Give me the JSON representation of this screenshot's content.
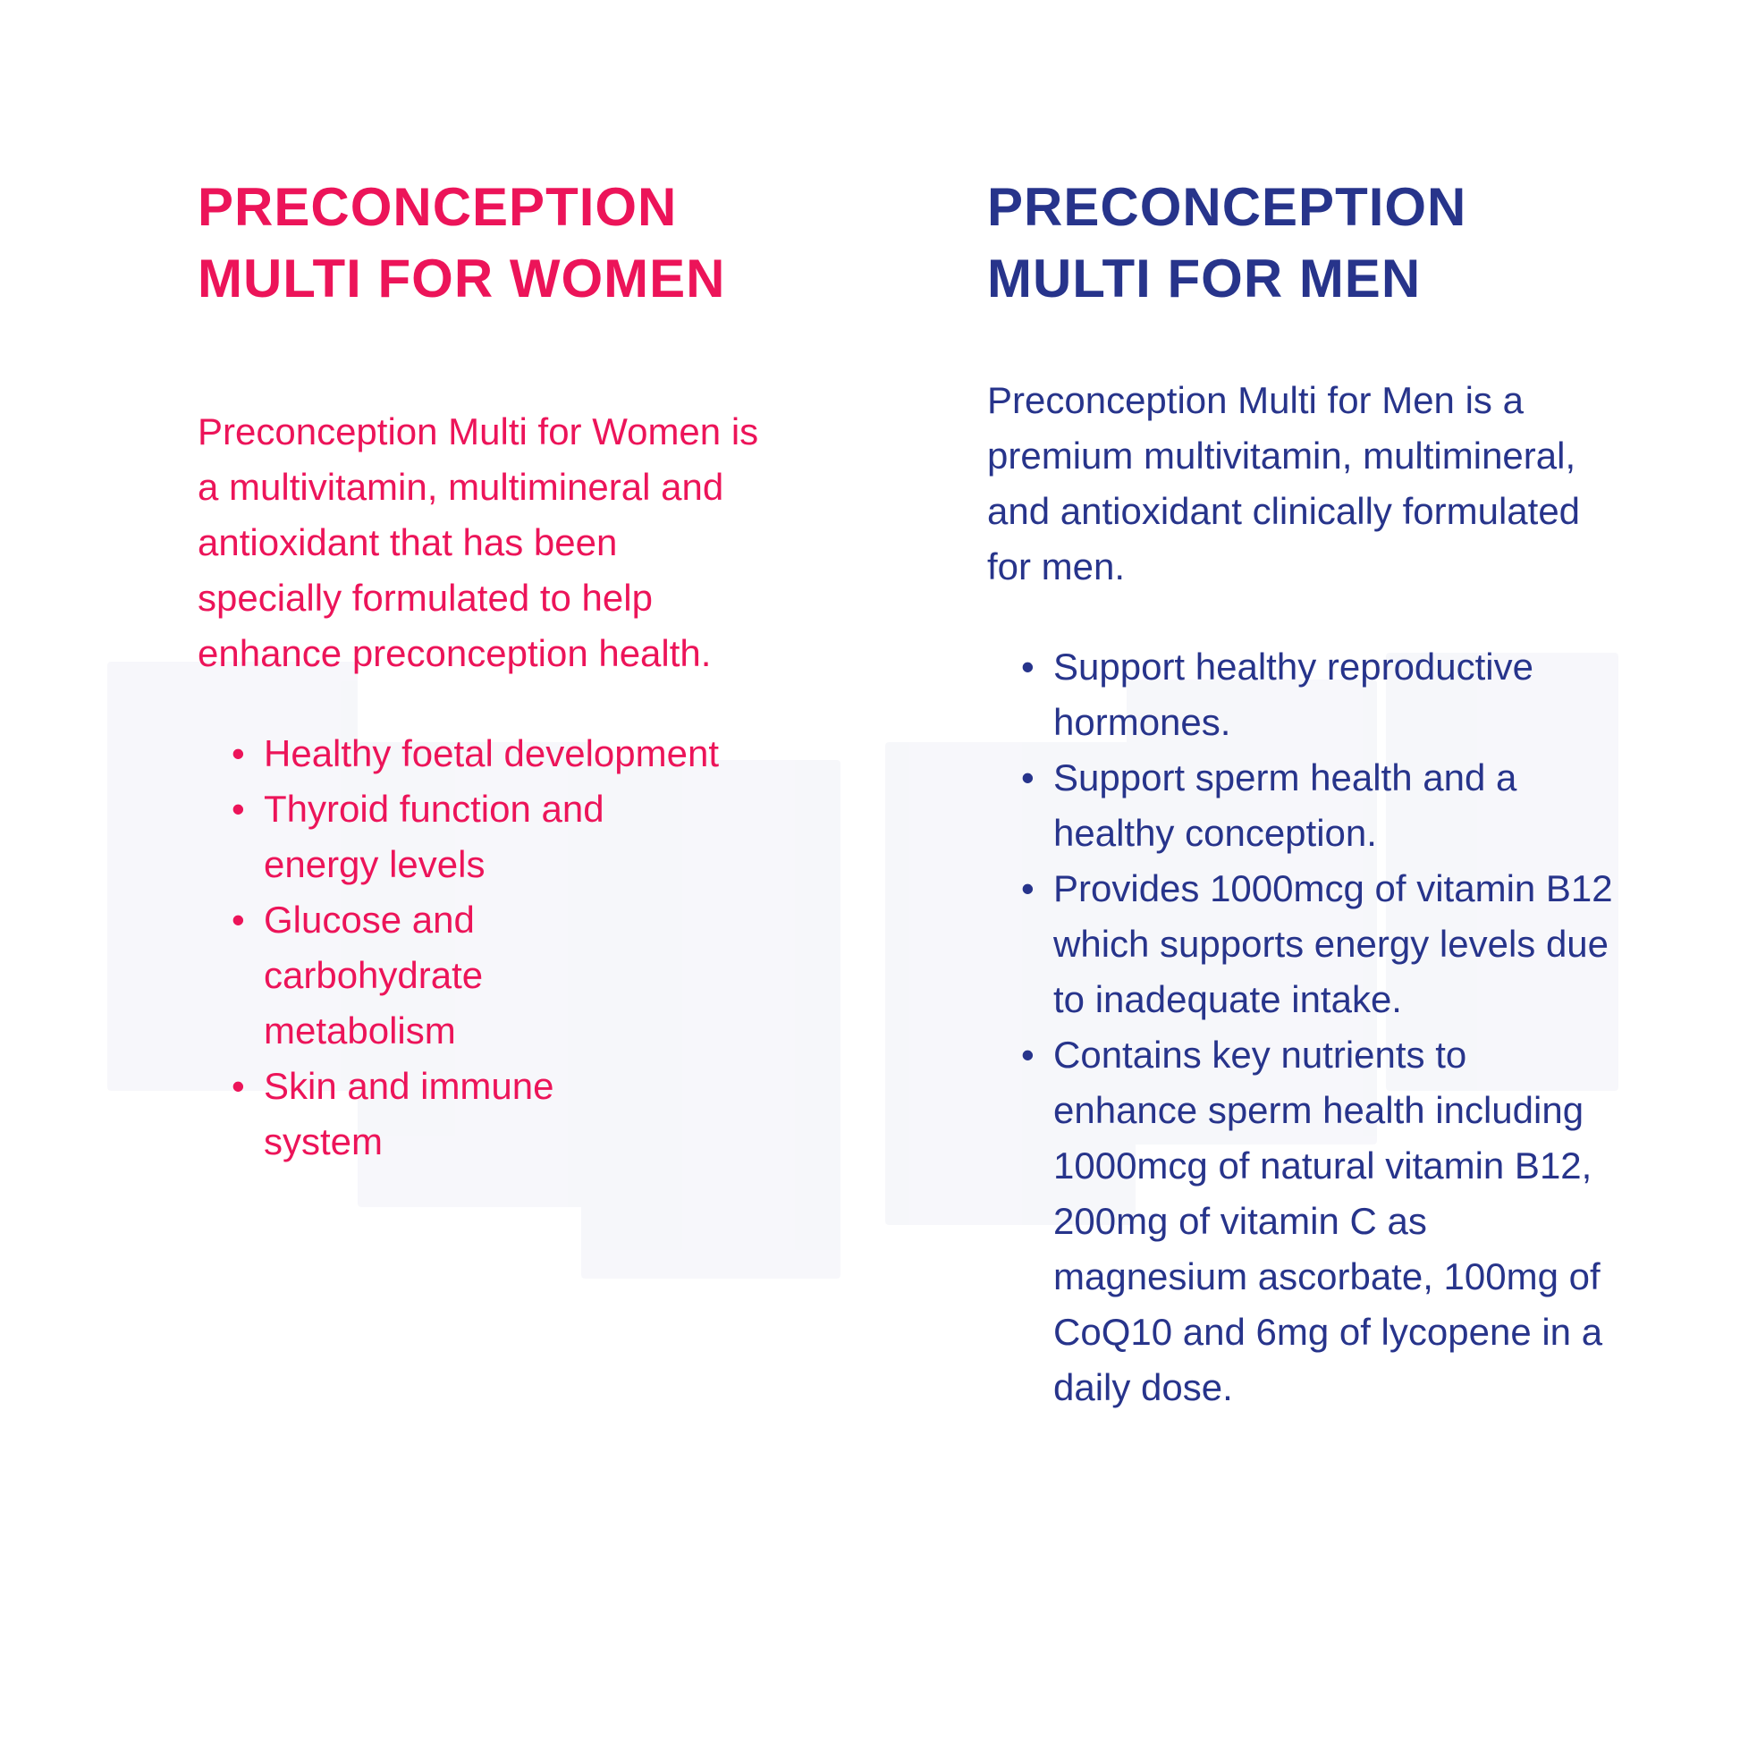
{
  "colors": {
    "women": "#ec1459",
    "men": "#27348b"
  },
  "women": {
    "title_line1": "PRECONCEPTION",
    "title_line2": "MULTI FOR WOMEN",
    "description": "Preconception Multi for Women is a multivitamin, multimineral and antioxidant that has been specially formulated to help enhance preconception health.",
    "bullets": [
      "Healthy foetal development",
      "Thyroid function and energy levels",
      "Glucose and carbohydrate metabolism",
      "Skin and immune system"
    ]
  },
  "men": {
    "title_line1": "PRECONCEPTION",
    "title_line2": "MULTI FOR MEN",
    "description": "Preconception Multi for Men is a premium multivitamin, multimineral, and antioxidant clinically formulated for men.",
    "bullets": [
      "Support healthy reproductive hormones.",
      "Support sperm health and a healthy conception.",
      "Provides 1000mcg of vitamin B12 which supports energy levels due to inadequate intake.",
      "Contains key nutrients to enhance sperm health including 1000mcg of natural vitamin B12, 200mg of vitamin C as magnesium ascorbate, 100mg of CoQ10 and 6mg of lycopene in a daily dose."
    ]
  },
  "bullet_glyph": "•"
}
